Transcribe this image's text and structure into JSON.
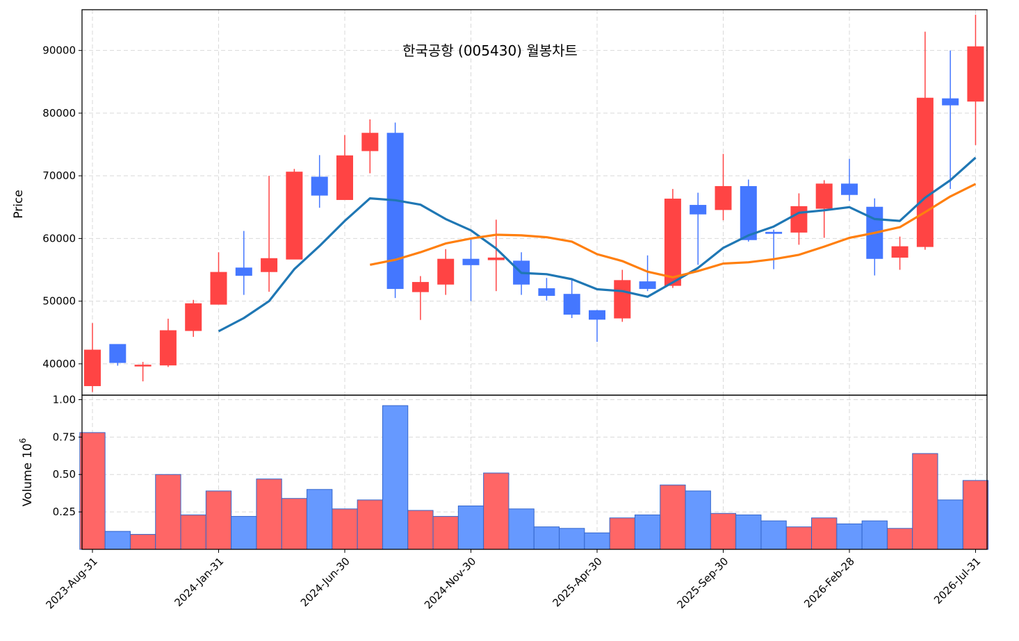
{
  "chart_data": {
    "type": "candlestick",
    "title": "한국공항 (005430) 월봉차트",
    "price_axis": {
      "label": "Price",
      "ylim": [
        35000,
        96500
      ],
      "ticks": [
        40000,
        50000,
        60000,
        70000,
        80000,
        90000
      ]
    },
    "volume_axis": {
      "label": "Volume",
      "exponent_label": "10",
      "exponent": "6",
      "ylim": [
        0,
        1.0
      ],
      "ticks": [
        "0.25",
        "0.50",
        "0.75",
        "1.00"
      ],
      "tick_values": [
        0.25,
        0.5,
        0.75,
        1.0
      ]
    },
    "x_tick_labels": [
      "2023-Aug-31",
      "2024-Jan-31",
      "2024-Jun-30",
      "2024-Nov-30",
      "2025-Apr-30",
      "2025-Sep-30",
      "2026-Feb-28",
      "2026-Jul-31"
    ],
    "x_tick_indices": [
      0,
      5,
      10,
      15,
      20,
      25,
      30,
      35
    ],
    "grid": true,
    "colors": {
      "up": "#ff4444",
      "down": "#4477ff",
      "ma1": "#1f77b4",
      "ma2": "#ff7f0e",
      "vol_up": "#ff6666",
      "vol_down": "#6699ff",
      "vol_edge": "#3366cc"
    },
    "candles": [
      {
        "o": 36500,
        "h": 46500,
        "l": 35500,
        "c": 42200
      },
      {
        "o": 43100,
        "h": 43100,
        "l": 39700,
        "c": 40200
      },
      {
        "o": 39700,
        "h": 40300,
        "l": 37200,
        "c": 39800
      },
      {
        "o": 39800,
        "h": 47200,
        "l": 39500,
        "c": 45300
      },
      {
        "o": 45300,
        "h": 50200,
        "l": 44300,
        "c": 49600
      },
      {
        "o": 49500,
        "h": 57800,
        "l": 49500,
        "c": 54600
      },
      {
        "o": 55300,
        "h": 61200,
        "l": 51000,
        "c": 54100
      },
      {
        "o": 54700,
        "h": 70000,
        "l": 51500,
        "c": 56800
      },
      {
        "o": 56700,
        "h": 71100,
        "l": 56700,
        "c": 70600
      },
      {
        "o": 69800,
        "h": 73300,
        "l": 64900,
        "c": 66900
      },
      {
        "o": 66200,
        "h": 76500,
        "l": 66200,
        "c": 73200
      },
      {
        "o": 74000,
        "h": 79000,
        "l": 70400,
        "c": 76800
      },
      {
        "o": 76800,
        "h": 78500,
        "l": 50500,
        "c": 52000
      },
      {
        "o": 51500,
        "h": 54000,
        "l": 47000,
        "c": 53000
      },
      {
        "o": 52700,
        "h": 58300,
        "l": 51000,
        "c": 56700
      },
      {
        "o": 56700,
        "h": 59900,
        "l": 50000,
        "c": 55800
      },
      {
        "o": 56600,
        "h": 63000,
        "l": 51600,
        "c": 56900
      },
      {
        "o": 56400,
        "h": 57800,
        "l": 51000,
        "c": 52700
      },
      {
        "o": 52000,
        "h": 53700,
        "l": 50100,
        "c": 50900
      },
      {
        "o": 51100,
        "h": 53400,
        "l": 47300,
        "c": 47900
      },
      {
        "o": 48500,
        "h": 48600,
        "l": 43500,
        "c": 47100
      },
      {
        "o": 47300,
        "h": 55000,
        "l": 46700,
        "c": 53300
      },
      {
        "o": 53100,
        "h": 57300,
        "l": 51600,
        "c": 52000
      },
      {
        "o": 52500,
        "h": 67900,
        "l": 52100,
        "c": 66300
      },
      {
        "o": 65300,
        "h": 67300,
        "l": 55800,
        "c": 63900
      },
      {
        "o": 64600,
        "h": 73500,
        "l": 62900,
        "c": 68300
      },
      {
        "o": 68300,
        "h": 69400,
        "l": 59500,
        "c": 59800
      },
      {
        "o": 61000,
        "h": 61400,
        "l": 55100,
        "c": 60800
      },
      {
        "o": 61000,
        "h": 67200,
        "l": 59000,
        "c": 65100
      },
      {
        "o": 64800,
        "h": 69300,
        "l": 60100,
        "c": 68700
      },
      {
        "o": 68700,
        "h": 72700,
        "l": 66000,
        "c": 67000
      },
      {
        "o": 65000,
        "h": 66400,
        "l": 54100,
        "c": 56800
      },
      {
        "o": 57000,
        "h": 60300,
        "l": 55000,
        "c": 58700
      },
      {
        "o": 58700,
        "h": 93000,
        "l": 58200,
        "c": 82400
      },
      {
        "o": 82300,
        "h": 90000,
        "l": 67900,
        "c": 81300
      },
      {
        "o": 81900,
        "h": 95700,
        "l": 74900,
        "c": 90600
      }
    ],
    "volume": [
      0.78,
      0.12,
      0.1,
      0.5,
      0.23,
      0.39,
      0.22,
      0.47,
      0.34,
      0.4,
      0.27,
      0.33,
      0.96,
      0.26,
      0.22,
      0.29,
      0.51,
      0.27,
      0.15,
      0.14,
      0.11,
      0.21,
      0.23,
      0.43,
      0.39,
      0.24,
      0.23,
      0.19,
      0.15,
      0.21,
      0.17,
      0.19,
      0.14,
      0.64,
      0.33,
      0.46
    ],
    "series": [
      {
        "values": [
          null,
          null,
          null,
          null,
          null,
          45200,
          47300,
          50000,
          55100,
          58800,
          62800,
          66400,
          66100,
          65400,
          63100,
          61300,
          58400,
          54500,
          54300,
          53500,
          51900,
          51600,
          50700,
          53000,
          55300,
          58500,
          60500,
          61900,
          64100,
          64500,
          65000,
          63100,
          62800,
          66500,
          69300,
          72900
        ]
      },
      {
        "values": [
          null,
          null,
          null,
          null,
          null,
          null,
          null,
          null,
          null,
          null,
          null,
          55800,
          56600,
          57800,
          59200,
          60000,
          60600,
          60500,
          60200,
          59500,
          57500,
          56400,
          54700,
          53800,
          54800,
          56000,
          56200,
          56700,
          57400,
          58700,
          60100,
          60900,
          61800,
          64200,
          66700,
          68700
        ]
      }
    ]
  }
}
